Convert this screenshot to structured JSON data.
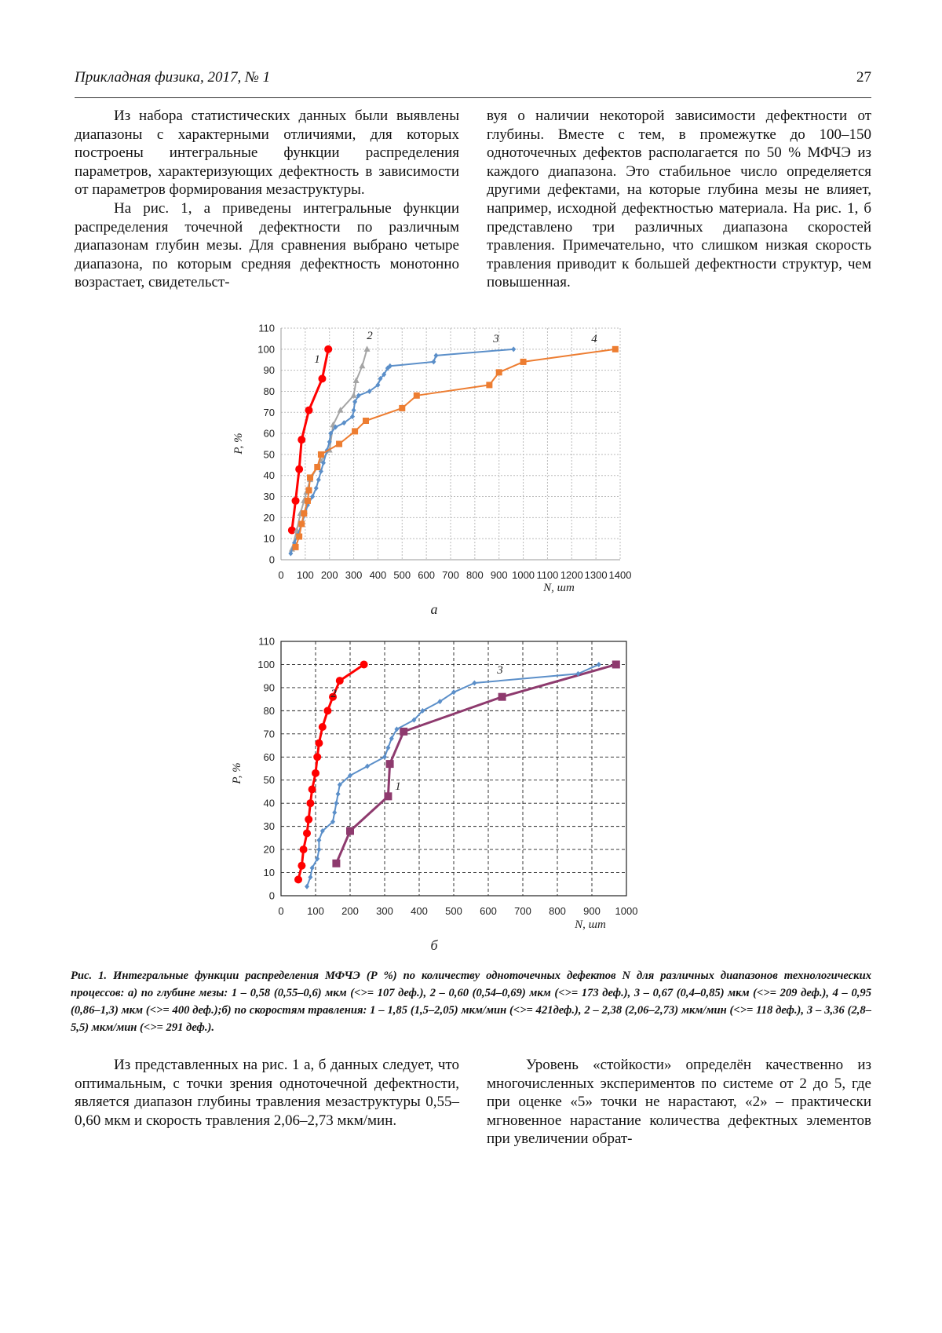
{
  "header": {
    "journal": "Прикладная физика, 2017, № 1",
    "page": "27"
  },
  "body_top": {
    "left": [
      "Из набора статистических данных были выявлены диапазоны с характерными отличиями, для которых построены интегральные функции распределения параметров, характеризующих дефектность в зависимости от параметров формирования мезаструктуры.",
      "На рис. 1, а приведены интегральные функции распределения точечной дефектности по различным диапазонам глубин мезы. Для сравнения выбрано четыре диапазона, по которым средняя дефектность монотонно возрастает, свидетельст-"
    ],
    "right": [
      "вуя о наличии некоторой зависимости дефектности от глубины. Вместе с тем, в промежутке до 100–150 одноточечных дефектов располагается по 50 % МФЧЭ из каждого диапазона. Это стабильное число определяется другими дефектами, на которые глубина мезы не влияет, например, исходной дефектностью материала. На рис. 1, б представлено три различных диапазона скоростей травления. Примечательно, что слишком низкая скорость травления приводит к большей дефектности структур, чем повышенная."
    ]
  },
  "chart_data": [
    {
      "type": "line",
      "caption": "а",
      "xlabel": "N, шт",
      "ylabel": "P, %",
      "xlim": [
        0,
        1400
      ],
      "ylim": [
        0,
        110
      ],
      "xticks": [
        0,
        100,
        200,
        300,
        400,
        500,
        600,
        700,
        800,
        900,
        1000,
        1100,
        1200,
        1300,
        1400
      ],
      "yticks": [
        0,
        10,
        20,
        30,
        40,
        50,
        60,
        70,
        80,
        90,
        100,
        110
      ],
      "grid": "dotted",
      "frame": false,
      "series": [
        {
          "name": "1",
          "color": "#ff0000",
          "marker": "circle",
          "x": [
            45,
            60,
            75,
            85,
            115,
            170,
            195
          ],
          "values": [
            14,
            28,
            43,
            57,
            71,
            86,
            100
          ]
        },
        {
          "name": "2",
          "color": "#a5a5a5",
          "marker": "triangle",
          "x": [
            45,
            65,
            80,
            95,
            105,
            120,
            165,
            200,
            215,
            245,
            300,
            310,
            335,
            355
          ],
          "values": [
            5,
            14,
            22,
            28,
            32,
            38,
            47,
            52,
            64,
            71,
            78,
            85,
            92,
            100
          ]
        },
        {
          "name": "3",
          "color": "#5b8fc9",
          "marker": "diamond",
          "x": [
            40,
            55,
            70,
            85,
            100,
            110,
            130,
            145,
            155,
            165,
            175,
            190,
            200,
            205,
            225,
            260,
            295,
            300,
            305,
            320,
            365,
            400,
            410,
            425,
            440,
            450,
            630,
            640,
            960
          ],
          "values": [
            3,
            8,
            12,
            17,
            22,
            26,
            30,
            34,
            38,
            42,
            46,
            52,
            56,
            60,
            63,
            65,
            68,
            71,
            75,
            78,
            80,
            83,
            86,
            88,
            91,
            92,
            94,
            97,
            100
          ]
        },
        {
          "name": "4",
          "color": "#ed7d31",
          "marker": "square",
          "x": [
            60,
            75,
            85,
            95,
            110,
            115,
            120,
            150,
            165,
            240,
            305,
            350,
            500,
            560,
            860,
            900,
            1000,
            1380
          ],
          "values": [
            6,
            11,
            17,
            22,
            28,
            33,
            39,
            44,
            50,
            55,
            61,
            66,
            72,
            78,
            83,
            89,
            94,
            100
          ]
        }
      ]
    },
    {
      "type": "line",
      "caption": "б",
      "xlabel": "N, шт",
      "ylabel": "P, %",
      "xlim": [
        0,
        1000
      ],
      "ylim": [
        0,
        110
      ],
      "xticks": [
        0,
        100,
        200,
        300,
        400,
        500,
        600,
        700,
        800,
        900,
        1000
      ],
      "yticks": [
        0,
        10,
        20,
        30,
        40,
        50,
        60,
        70,
        80,
        90,
        100,
        110
      ],
      "grid": "dashed",
      "frame": true,
      "series": [
        {
          "name": "1",
          "color": "#8e3a6e",
          "marker": "square",
          "x": [
            160,
            200,
            310,
            315,
            355,
            640,
            970
          ],
          "values": [
            14,
            28,
            43,
            57,
            71,
            86,
            100
          ]
        },
        {
          "name": "2",
          "color": "#ff0000",
          "marker": "circle",
          "x": [
            50,
            60,
            65,
            75,
            80,
            85,
            90,
            100,
            105,
            110,
            120,
            135,
            150,
            170,
            240
          ],
          "values": [
            7,
            13,
            20,
            27,
            33,
            40,
            46,
            53,
            60,
            66,
            73,
            80,
            86,
            93,
            100
          ]
        },
        {
          "name": "3",
          "color": "#5b8fc9",
          "marker": "diamond",
          "x": [
            75,
            85,
            90,
            105,
            110,
            110,
            120,
            150,
            155,
            160,
            165,
            170,
            200,
            250,
            300,
            310,
            320,
            335,
            385,
            410,
            460,
            500,
            560,
            860,
            920
          ],
          "values": [
            4,
            8,
            12,
            16,
            20,
            24,
            28,
            32,
            36,
            40,
            44,
            48,
            52,
            56,
            60,
            64,
            68,
            72,
            76,
            80,
            84,
            88,
            92,
            96,
            100
          ]
        }
      ]
    }
  ],
  "figure_caption": "Рис. 1. Интегральные функции распределения МФЧЭ (Р %) по количеству одноточечных дефектов N для различных диапазонов технологических процессов: а) по глубине мезы: 1 – 0,58 (0,55–0,6) мкм (<>= 107 деф.), 2 – 0,60 (0,54–0,69) мкм (<>= 173 деф.), 3 – 0,67 (0,4–0,85) мкм (<>= 209 деф.), 4 – 0,95 (0,86–1,3) мкм (<>= 400 деф.);б) по скоростям травления: 1 – 1,85 (1,5–2,05) мкм/мин (<>= 421деф.), 2 – 2,38 (2,06–2,73) мкм/мин (<>= 118 деф.), 3 – 3,36 (2,8–5,5) мкм/мин (<>= 291 деф.).",
  "body_bottom": {
    "left": [
      "Из представленных на рис. 1 а, б данных следует, что оптимальным, с точки зрения одноточечной дефектности, является диапазон глубины травления мезаструктуры 0,55–0,60 мкм и скорость травления 2,06–2,73 мкм/мин."
    ],
    "right": [
      "Уровень «стойкости» определён качественно из многочисленных экспериментов по системе от 2 до 5, где при оценке «5» точки не нарастают, «2» – практически мгновенное нарастание количества дефектных элементов при увеличении обрат-"
    ]
  }
}
